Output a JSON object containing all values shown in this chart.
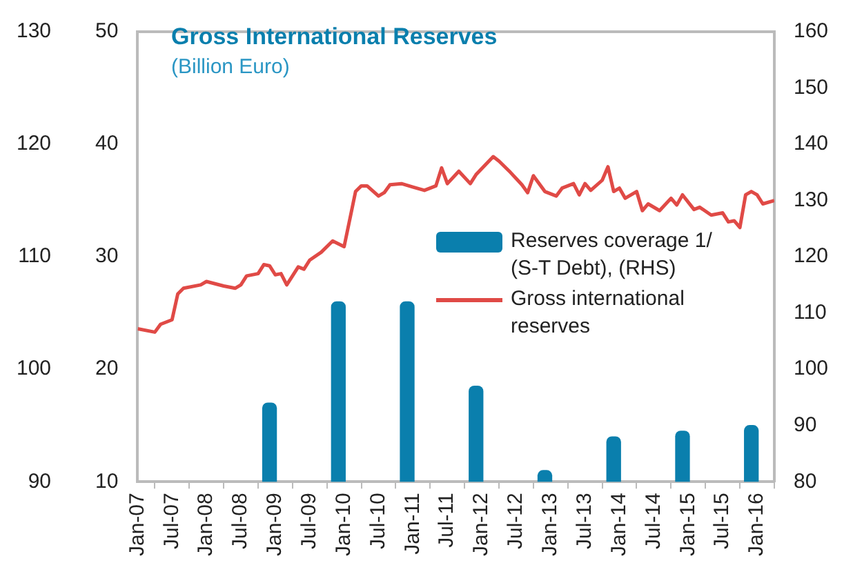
{
  "chart_data": {
    "type": "line",
    "title": "Gross International Reserves",
    "subtitle": "(Billion Euro)",
    "xlim": [
      "2007-01",
      "2016-04"
    ],
    "xticks": [
      {
        "value": "2007-01",
        "label": "Jan-07"
      },
      {
        "value": "2007-07",
        "label": "Jul-07"
      },
      {
        "value": "2008-01",
        "label": "Jan-08"
      },
      {
        "value": "2008-07",
        "label": "Jul-08"
      },
      {
        "value": "2009-01",
        "label": "Jan-09"
      },
      {
        "value": "2009-07",
        "label": "Jul-09"
      },
      {
        "value": "2010-01",
        "label": "Jan-10"
      },
      {
        "value": "2010-07",
        "label": "Jul-10"
      },
      {
        "value": "2011-01",
        "label": "Jan-11"
      },
      {
        "value": "2011-07",
        "label": "Jul-11"
      },
      {
        "value": "2012-01",
        "label": "Jan-12"
      },
      {
        "value": "2012-07",
        "label": "Jul-12"
      },
      {
        "value": "2013-01",
        "label": "Jan-13"
      },
      {
        "value": "2013-07",
        "label": "Jul-13"
      },
      {
        "value": "2014-01",
        "label": "Jan-14"
      },
      {
        "value": "2014-07",
        "label": "Jul-14"
      },
      {
        "value": "2015-01",
        "label": "Jan-15"
      },
      {
        "value": "2015-07",
        "label": "Jul-15"
      },
      {
        "value": "2016-01",
        "label": "Jan-16"
      }
    ],
    "ylim": [
      10,
      50
    ],
    "yticks": [
      10,
      20,
      30,
      40,
      50
    ],
    "y2lim": [
      80,
      160
    ],
    "y2ticks": [
      80,
      90,
      100,
      110,
      120,
      130,
      140,
      150,
      160
    ],
    "y3lim": [
      90,
      130
    ],
    "y3ticks": [
      90,
      100,
      110,
      120,
      130
    ],
    "grid": false,
    "legend": "right",
    "marker": "none",
    "line_style": "solid",
    "series": [
      {
        "name": "Reserves coverage 1/ (S-T Debt), (RHS)",
        "type": "bar",
        "axis": "y2",
        "color": "#0a7fad",
        "x": [
          "2008-12",
          "2009-12",
          "2010-12",
          "2011-12",
          "2012-12",
          "2013-12",
          "2014-12",
          "2015-12"
        ],
        "values": [
          94,
          112,
          112,
          97,
          82,
          88,
          89,
          90
        ]
      },
      {
        "name": "Gross international reserves",
        "color": "#e04a46",
        "x": [
          "2007-01",
          "2007-04",
          "2007-05",
          "2007-07",
          "2007-08",
          "2007-09",
          "2007-12",
          "2008-01",
          "2008-04",
          "2008-06",
          "2008-07",
          "2008-08",
          "2008-10",
          "2008-11",
          "2008-12",
          "2009-01",
          "2009-02",
          "2009-03",
          "2009-05",
          "2009-06",
          "2009-07",
          "2009-09",
          "2009-11",
          "2010-01",
          "2010-03",
          "2010-04",
          "2010-05",
          "2010-07",
          "2010-08",
          "2010-09",
          "2010-11",
          "2011-01",
          "2011-03",
          "2011-05",
          "2011-06",
          "2011-07",
          "2011-09",
          "2011-11",
          "2011-12",
          "2012-03",
          "2012-04",
          "2012-06",
          "2012-08",
          "2012-09",
          "2012-10",
          "2012-12",
          "2013-02",
          "2013-03",
          "2013-05",
          "2013-06",
          "2013-07",
          "2013-08",
          "2013-10",
          "2013-11",
          "2013-12",
          "2014-01",
          "2014-02",
          "2014-04",
          "2014-05",
          "2014-06",
          "2014-08",
          "2014-10",
          "2014-11",
          "2014-12",
          "2015-02",
          "2015-03",
          "2015-05",
          "2015-07",
          "2015-08",
          "2015-09",
          "2015-10",
          "2015-11",
          "2015-12",
          "2016-01",
          "2016-02",
          "2016-04"
        ],
        "values": [
          23.6,
          23.3,
          24,
          24.4,
          26.7,
          27.2,
          27.5,
          27.8,
          27.4,
          27.2,
          27.5,
          28.3,
          28.5,
          29.3,
          29.2,
          28.4,
          28.5,
          27.5,
          29.1,
          28.9,
          29.7,
          30.4,
          31.4,
          30.9,
          35.8,
          36.3,
          36.3,
          35.4,
          35.7,
          36.4,
          36.5,
          36.2,
          35.9,
          36.3,
          37.9,
          36.5,
          37.6,
          36.5,
          37.3,
          38.9,
          38.5,
          37.5,
          36.4,
          35.7,
          37.2,
          35.8,
          35.4,
          36.1,
          36.5,
          35.5,
          36.5,
          35.9,
          36.8,
          38.0,
          35.8,
          36.1,
          35.2,
          35.8,
          34.1,
          34.7,
          34.1,
          35.2,
          34.6,
          35.5,
          34.2,
          34.4,
          33.7,
          33.9,
          33.1,
          33.2,
          32.6,
          35.5,
          35.8,
          35.5,
          34.7,
          35.0
        ]
      }
    ]
  }
}
